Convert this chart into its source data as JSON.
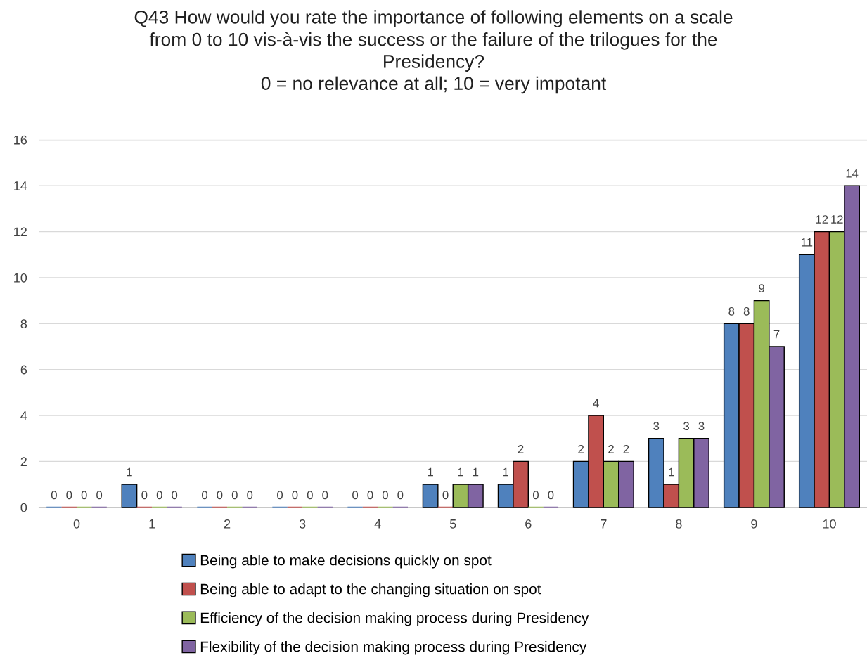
{
  "chart_data": {
    "type": "bar",
    "title": "Q43 How would you rate the importance of following elements on a scale\nfrom 0 to 10 vis-à-vis the success or the failure of the trilogues for the\nPresidency?\n0 = no relevance at all; 10 = very impotant",
    "categories": [
      "0",
      "1",
      "2",
      "3",
      "4",
      "5",
      "6",
      "7",
      "8",
      "9",
      "10"
    ],
    "series": [
      {
        "name": "Being able to make decisions quickly on spot",
        "color": "#4f81bd",
        "values": [
          0,
          1,
          0,
          0,
          0,
          1,
          1,
          2,
          3,
          8,
          11
        ]
      },
      {
        "name": "Being able to adapt to the changing situation on spot",
        "color": "#c0504d",
        "values": [
          0,
          0,
          0,
          0,
          0,
          0,
          2,
          4,
          1,
          8,
          12
        ]
      },
      {
        "name": "Efficiency of the decision making process during Presidency",
        "color": "#9bbb59",
        "values": [
          0,
          0,
          0,
          0,
          0,
          1,
          0,
          2,
          3,
          9,
          12
        ]
      },
      {
        "name": "Flexibility of the decision making process during Presidency",
        "color": "#8064a2",
        "values": [
          0,
          0,
          0,
          0,
          0,
          1,
          0,
          2,
          3,
          7,
          14
        ]
      }
    ],
    "ylim": [
      0,
      16
    ],
    "yticks": [
      0,
      2,
      4,
      6,
      8,
      10,
      12,
      14,
      16
    ],
    "grid": "y",
    "legend": "bottom",
    "data_labels": true
  }
}
